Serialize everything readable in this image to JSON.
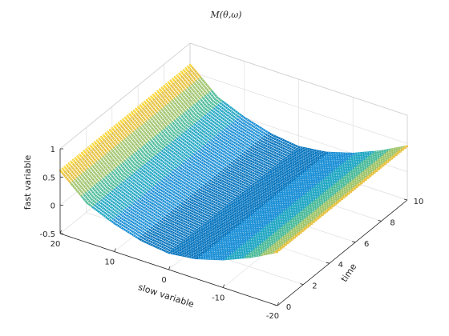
{
  "chart_data": {
    "type": "surface",
    "title": "M(θ,ω)",
    "xlabel": "slow variable",
    "ylabel": "time",
    "zlabel": "fast variable",
    "x_range": [
      -20,
      20
    ],
    "y_range": [
      0,
      10
    ],
    "z_range": [
      -0.5,
      1
    ],
    "x_ticks": [
      "20",
      "10",
      "0",
      "-10",
      "-20"
    ],
    "y_ticks": [
      "0",
      "2",
      "4",
      "6",
      "8",
      "10"
    ],
    "z_ticks": [
      "1",
      "0.5",
      "0",
      "-0.5"
    ],
    "grid": true,
    "colormap": [
      "#0072bd",
      "#1a8fd6",
      "#22a7c4",
      "#4dbb9a",
      "#9ec46a",
      "#e6c03a",
      "#f9d22b"
    ],
    "series": [
      {
        "description": "fast variable vs slow variable, repeated along time",
        "x": [
          -20,
          -15,
          -10,
          -5,
          0,
          5,
          10,
          15,
          20
        ],
        "z": [
          0.45,
          0.2,
          0.0,
          -0.14,
          -0.2,
          -0.14,
          0.0,
          0.2,
          0.62
        ]
      }
    ]
  }
}
